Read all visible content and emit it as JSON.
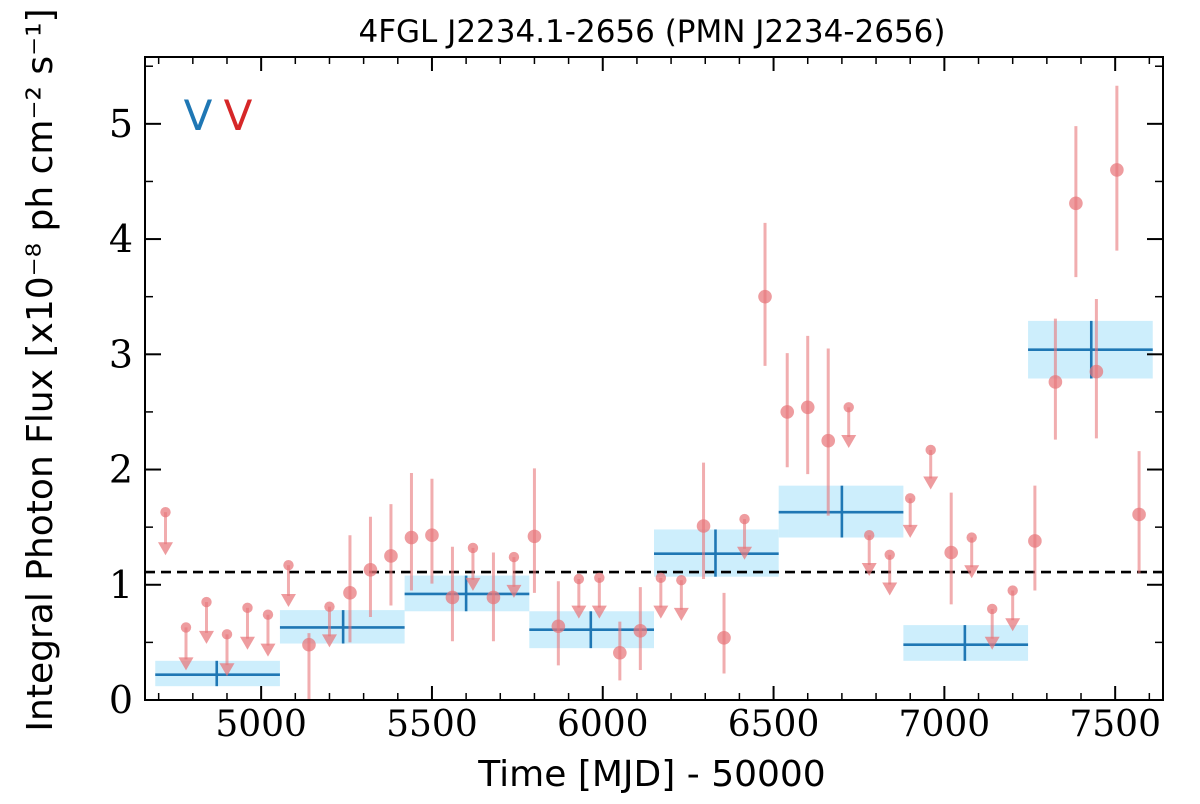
{
  "chart_data": {
    "type": "scatter",
    "title": "4FGL J2234.1-2656 (PMN J2234-2656)",
    "xlabel": "Time [MJD] - 50000",
    "ylabel": "Integral Photon Flux [x10⁻⁸ ph cm⁻² s⁻¹]",
    "xlim": [
      4660,
      7640
    ],
    "ylim": [
      0,
      5.58
    ],
    "xticks": [
      5000,
      5500,
      6000,
      6500,
      7000,
      7500
    ],
    "yticks": [
      0,
      1,
      2,
      3,
      4,
      5
    ],
    "xtick_labels": [
      "5000",
      "5500",
      "6000",
      "6500",
      "7000",
      "7500"
    ],
    "ytick_labels": [
      "0",
      "1",
      "2",
      "3",
      "4",
      "5"
    ],
    "grid": false,
    "mean_flux": 1.11,
    "markers": [
      {
        "text": "V",
        "color": "#1f77b4"
      },
      {
        "text": "V",
        "color": "#d62728"
      }
    ],
    "colors": {
      "yearly": "#1f77b4",
      "yearly_band": "#cdeefc",
      "monthly": "#e8767a",
      "mean_line": "#000000"
    },
    "series": [
      {
        "kind": "yearly_bins",
        "points": [
          {
            "x0": 4690,
            "x1": 5055,
            "x": 4870,
            "y": 0.22,
            "lo": 0.12,
            "hi": 0.34
          },
          {
            "x0": 5055,
            "x1": 5420,
            "x": 5240,
            "y": 0.63,
            "lo": 0.49,
            "hi": 0.78
          },
          {
            "x0": 5420,
            "x1": 5785,
            "x": 5600,
            "y": 0.92,
            "lo": 0.77,
            "hi": 1.08
          },
          {
            "x0": 5785,
            "x1": 6150,
            "x": 5965,
            "y": 0.61,
            "lo": 0.45,
            "hi": 0.77
          },
          {
            "x0": 6150,
            "x1": 6515,
            "x": 6330,
            "y": 1.27,
            "lo": 1.07,
            "hi": 1.48
          },
          {
            "x0": 6515,
            "x1": 6880,
            "x": 6700,
            "y": 1.63,
            "lo": 1.41,
            "hi": 1.86
          },
          {
            "x0": 6880,
            "x1": 7245,
            "x": 7060,
            "y": 0.48,
            "lo": 0.34,
            "hi": 0.65
          },
          {
            "x0": 7245,
            "x1": 7610,
            "x": 7430,
            "y": 3.04,
            "lo": 2.79,
            "hi": 3.29
          }
        ]
      },
      {
        "kind": "monthly_detections",
        "points": [
          {
            "x": 5140,
            "y": 0.48,
            "lo": 0.0,
            "hi": 0.58
          },
          {
            "x": 5260,
            "y": 0.93,
            "lo": 0.5,
            "hi": 1.43
          },
          {
            "x": 5320,
            "y": 1.13,
            "lo": 0.72,
            "hi": 1.59
          },
          {
            "x": 5380,
            "y": 1.25,
            "lo": 0.82,
            "hi": 1.7
          },
          {
            "x": 5440,
            "y": 1.41,
            "lo": 0.95,
            "hi": 1.97
          },
          {
            "x": 5500,
            "y": 1.43,
            "lo": 1.01,
            "hi": 1.92
          },
          {
            "x": 5560,
            "y": 0.89,
            "lo": 0.51,
            "hi": 1.33
          },
          {
            "x": 5680,
            "y": 0.89,
            "lo": 0.51,
            "hi": 1.28
          },
          {
            "x": 5800,
            "y": 1.42,
            "lo": 0.93,
            "hi": 2.01
          },
          {
            "x": 5870,
            "y": 0.64,
            "lo": 0.3,
            "hi": 1.03
          },
          {
            "x": 6050,
            "y": 0.41,
            "lo": 0.17,
            "hi": 0.68
          },
          {
            "x": 6110,
            "y": 0.6,
            "lo": 0.26,
            "hi": 0.98
          },
          {
            "x": 6295,
            "y": 1.51,
            "lo": 1.05,
            "hi": 2.06
          },
          {
            "x": 6355,
            "y": 0.54,
            "lo": 0.23,
            "hi": 0.93
          },
          {
            "x": 6475,
            "y": 3.5,
            "lo": 2.9,
            "hi": 4.14
          },
          {
            "x": 6540,
            "y": 2.5,
            "lo": 2.02,
            "hi": 3.01
          },
          {
            "x": 6600,
            "y": 2.54,
            "lo": 1.96,
            "hi": 3.16
          },
          {
            "x": 6660,
            "y": 2.25,
            "lo": 1.6,
            "hi": 3.05
          },
          {
            "x": 7020,
            "y": 1.28,
            "lo": 0.83,
            "hi": 1.8
          },
          {
            "x": 7265,
            "y": 1.38,
            "lo": 0.95,
            "hi": 1.86
          },
          {
            "x": 7325,
            "y": 2.76,
            "lo": 2.26,
            "hi": 3.31
          },
          {
            "x": 7385,
            "y": 4.31,
            "lo": 3.67,
            "hi": 4.98
          },
          {
            "x": 7445,
            "y": 2.85,
            "lo": 2.27,
            "hi": 3.48
          },
          {
            "x": 7505,
            "y": 4.6,
            "lo": 3.9,
            "hi": 5.33
          },
          {
            "x": 7570,
            "y": 1.61,
            "lo": 1.1,
            "hi": 2.16
          }
        ]
      },
      {
        "kind": "monthly_upper_limits",
        "points": [
          {
            "x": 4720,
            "y": 1.63,
            "tip": 1.3
          },
          {
            "x": 4780,
            "y": 0.63,
            "tip": 0.3
          },
          {
            "x": 4840,
            "y": 0.85,
            "tip": 0.53
          },
          {
            "x": 4900,
            "y": 0.57,
            "tip": 0.25
          },
          {
            "x": 4960,
            "y": 0.8,
            "tip": 0.48
          },
          {
            "x": 5020,
            "y": 0.74,
            "tip": 0.42
          },
          {
            "x": 5080,
            "y": 1.17,
            "tip": 0.85
          },
          {
            "x": 5200,
            "y": 0.81,
            "tip": 0.5
          },
          {
            "x": 5620,
            "y": 1.32,
            "tip": 0.99
          },
          {
            "x": 5740,
            "y": 1.24,
            "tip": 0.93
          },
          {
            "x": 5930,
            "y": 1.05,
            "tip": 0.75
          },
          {
            "x": 5990,
            "y": 1.06,
            "tip": 0.75
          },
          {
            "x": 6170,
            "y": 1.06,
            "tip": 0.75
          },
          {
            "x": 6230,
            "y": 1.04,
            "tip": 0.73
          },
          {
            "x": 6415,
            "y": 1.57,
            "tip": 1.26
          },
          {
            "x": 6720,
            "y": 2.54,
            "tip": 2.23
          },
          {
            "x": 6780,
            "y": 1.43,
            "tip": 1.12
          },
          {
            "x": 6840,
            "y": 1.26,
            "tip": 0.95
          },
          {
            "x": 6900,
            "y": 1.75,
            "tip": 1.45
          },
          {
            "x": 6960,
            "y": 2.17,
            "tip": 1.87
          },
          {
            "x": 7080,
            "y": 1.41,
            "tip": 1.1
          },
          {
            "x": 7140,
            "y": 0.79,
            "tip": 0.48
          },
          {
            "x": 7200,
            "y": 0.95,
            "tip": 0.64
          }
        ]
      }
    ]
  }
}
